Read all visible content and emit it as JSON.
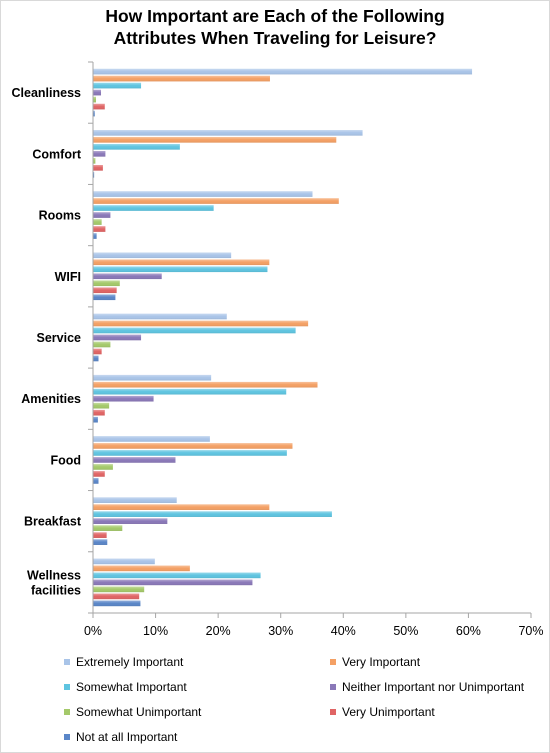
{
  "chart_data": {
    "type": "bar",
    "orientation": "horizontal",
    "title": "How Important are Each of the Following\nAttributes When Traveling for Leisure?",
    "categories": [
      "Cleanliness",
      "Comfort",
      "Rooms",
      "WIFI",
      "Service",
      "Amenities",
      "Food",
      "Breakfast",
      "Wellness\nfacilities"
    ],
    "xlim": [
      0,
      70
    ],
    "xticks": [
      "0%",
      "10%",
      "20%",
      "30%",
      "40%",
      "50%",
      "60%",
      "70%"
    ],
    "xtick_values": [
      0,
      10,
      20,
      30,
      40,
      50,
      60,
      70
    ],
    "grid": false,
    "legend_position": "bottom",
    "series": [
      {
        "name": "Extremely Important",
        "color": "#a9c4e8",
        "values": [
          60.5,
          43.0,
          35.0,
          22.0,
          21.3,
          18.8,
          18.6,
          13.3,
          9.8
        ]
      },
      {
        "name": "Very Important",
        "color": "#f4a064",
        "values": [
          28.2,
          38.8,
          39.2,
          28.1,
          34.3,
          35.8,
          31.8,
          28.1,
          15.4
        ]
      },
      {
        "name": "Somewhat Important",
        "color": "#5ec4e0",
        "values": [
          7.6,
          13.8,
          19.2,
          27.8,
          32.3,
          30.8,
          30.9,
          38.1,
          26.7
        ]
      },
      {
        "name": "Neither Important nor Unimportant",
        "color": "#8a78b8",
        "values": [
          1.2,
          1.9,
          2.7,
          10.9,
          7.6,
          9.6,
          13.1,
          11.8,
          25.4
        ]
      },
      {
        "name": "Somewhat Unimportant",
        "color": "#a4c96a",
        "values": [
          0.4,
          0.3,
          1.3,
          4.2,
          2.7,
          2.5,
          3.1,
          4.6,
          8.1
        ]
      },
      {
        "name": "Very Unimportant",
        "color": "#e06464",
        "values": [
          1.8,
          1.5,
          1.9,
          3.7,
          1.3,
          1.8,
          1.8,
          2.1,
          7.3
        ]
      },
      {
        "name": "Not at all Important",
        "color": "#5a86c8",
        "values": [
          0.2,
          0.1,
          0.5,
          3.5,
          0.8,
          0.7,
          0.8,
          2.2,
          7.5
        ]
      }
    ]
  }
}
